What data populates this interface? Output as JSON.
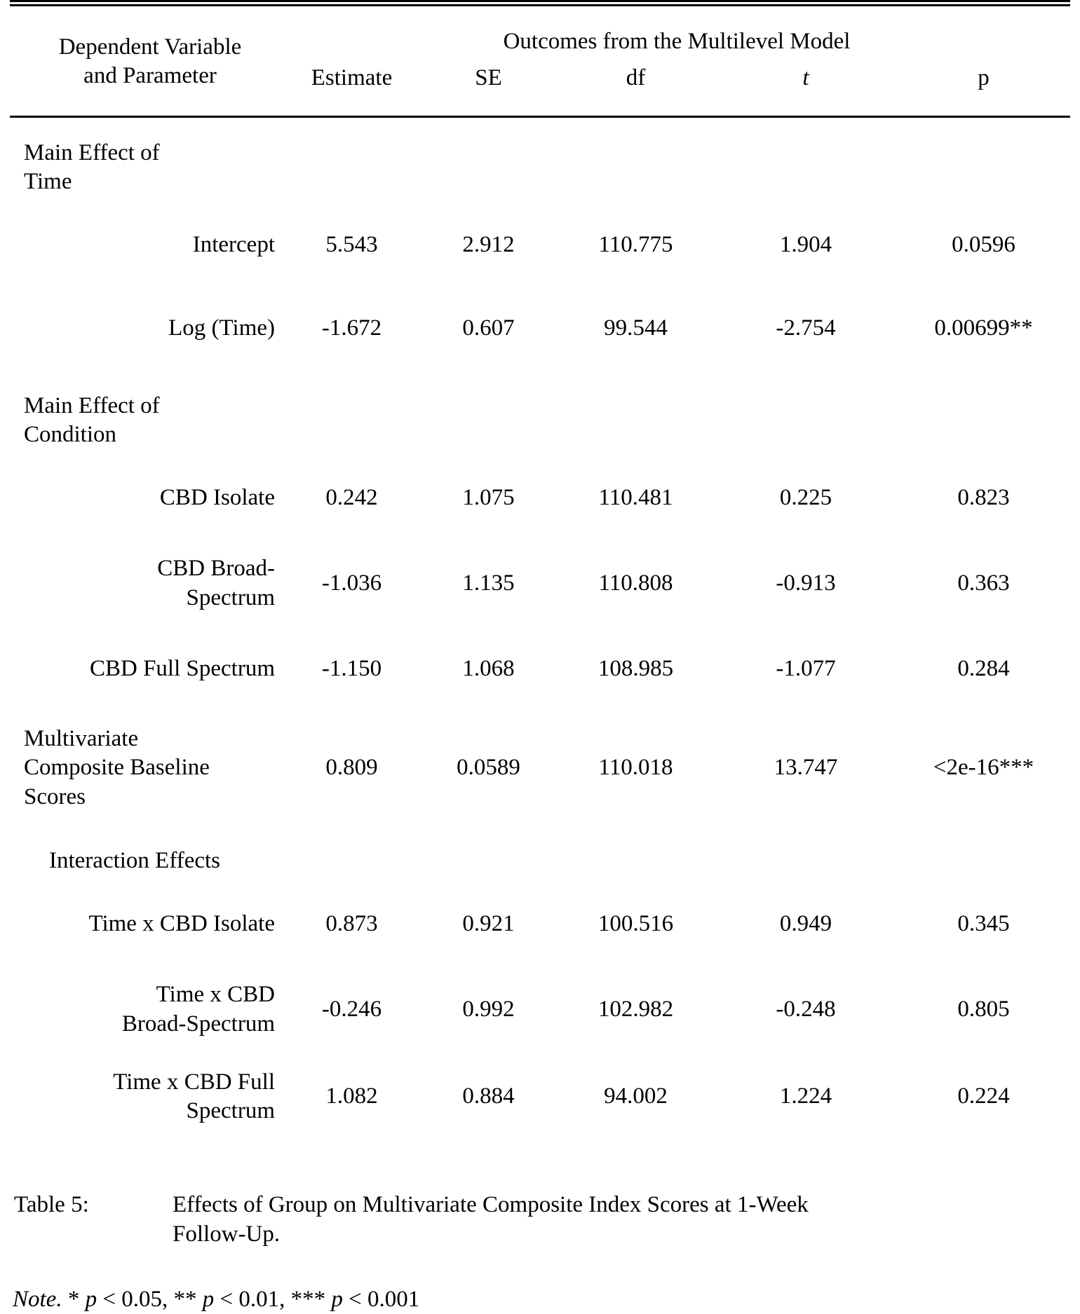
{
  "table": {
    "stub_header": {
      "lines": [
        "Dependent Variable",
        "and Parameter"
      ]
    },
    "span_header": "Outcomes from the Multilevel Model",
    "column_headers": {
      "estimate": "Estimate",
      "se": "SE",
      "df": "df",
      "t": "t",
      "p": "p"
    },
    "rows": [
      {
        "kind": "section",
        "label_lines": [
          "Main Effect of",
          "Time"
        ]
      },
      {
        "kind": "data",
        "label_lines": [
          "Intercept"
        ],
        "estimate": "5.543",
        "se": "2.912",
        "df": "110.775",
        "t": "1.904",
        "p": "0.0596"
      },
      {
        "kind": "data",
        "label_lines": [
          "Log (Time)"
        ],
        "estimate": "-1.672",
        "se": "0.607",
        "df": "99.544",
        "t": "-2.754",
        "p": "0.00699**"
      },
      {
        "kind": "section",
        "label_lines": [
          "Main Effect of",
          "Condition"
        ]
      },
      {
        "kind": "data",
        "label_lines": [
          "CBD Isolate"
        ],
        "estimate": "0.242",
        "se": "1.075",
        "df": "110.481",
        "t": "0.225",
        "p": "0.823"
      },
      {
        "kind": "data",
        "label_lines": [
          "CBD Broad-",
          "Spectrum"
        ],
        "estimate": "-1.036",
        "se": "1.135",
        "df": "110.808",
        "t": "-0.913",
        "p": "0.363"
      },
      {
        "kind": "data",
        "label_lines": [
          "CBD Full Spectrum"
        ],
        "estimate": "-1.150",
        "se": "1.068",
        "df": "108.985",
        "t": "-1.077",
        "p": "0.284"
      },
      {
        "kind": "data",
        "label_lines": [
          "Multivariate",
          "Composite Baseline",
          "Scores"
        ],
        "estimate": "0.809",
        "se": "0.0589",
        "df": "110.018",
        "t": "13.747",
        "p": "<2e-16***"
      },
      {
        "kind": "section",
        "label_lines": [
          "Interaction Effects"
        ]
      },
      {
        "kind": "data",
        "label_lines": [
          "Time x CBD Isolate"
        ],
        "estimate": "0.873",
        "se": "0.921",
        "df": "100.516",
        "t": "0.949",
        "p": "0.345"
      },
      {
        "kind": "data",
        "label_lines": [
          "Time x CBD",
          "Broad-Spectrum"
        ],
        "estimate": "-0.246",
        "se": "0.992",
        "df": "102.982",
        "t": "-0.248",
        "p": "0.805"
      },
      {
        "kind": "data",
        "label_lines": [
          "Time x CBD Full",
          "Spectrum"
        ],
        "estimate": "1.082",
        "se": "0.884",
        "df": "94.002",
        "t": "1.224",
        "p": "0.224"
      }
    ]
  },
  "caption": {
    "label": "Table 5:",
    "lines": [
      "Effects of Group on Multivariate Composite Index Scores at 1-Week",
      "Follow-Up."
    ]
  },
  "note": {
    "segments": [
      {
        "text": "Note."
      },
      {
        "text": " * "
      },
      {
        "text": "p"
      },
      {
        "text": " < 0.05, ** "
      },
      {
        "text": "p"
      },
      {
        "text": " < 0.01, *** "
      },
      {
        "text": "p"
      },
      {
        "text": " < 0.001"
      }
    ]
  },
  "colors": {
    "text": "#000000",
    "background": "#ffffff",
    "rule": "#000000"
  }
}
